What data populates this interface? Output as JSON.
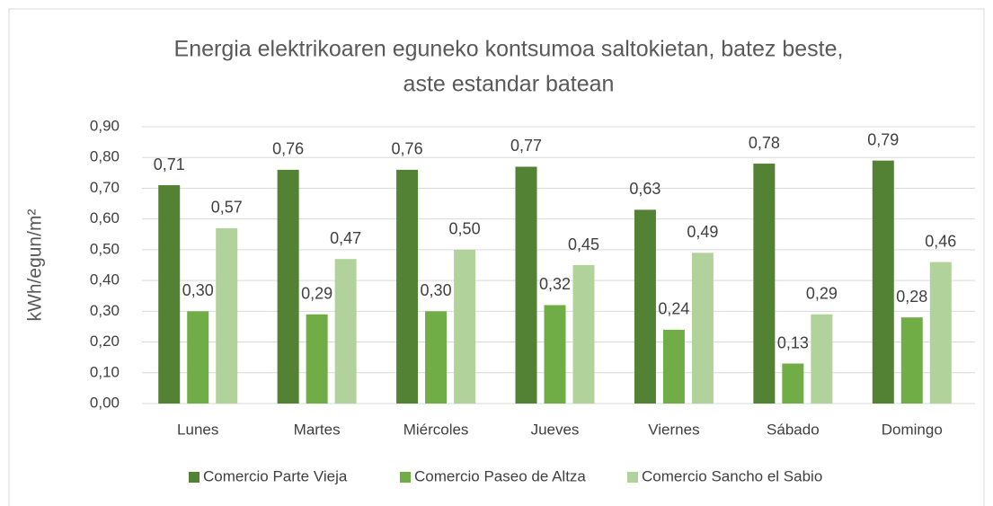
{
  "chart_data": {
    "type": "bar",
    "title": [
      "Energia elektrikoaren eguneko kontsumoa saltokietan, batez beste,",
      "aste estandar batean"
    ],
    "y_label": "kWh/egun/m²",
    "categories": [
      "Lunes",
      "Martes",
      "Miércoles",
      "Jueves",
      "Viernes",
      "Sábado",
      "Domingo"
    ],
    "series": [
      {
        "name": "Comercio Parte Vieja",
        "color": "#548235",
        "values": [
          0.71,
          0.76,
          0.76,
          0.77,
          0.63,
          0.78,
          0.79
        ],
        "value_labels": [
          "0,71",
          "0,76",
          "0,76",
          "0,77",
          "0,63",
          "0,78",
          "0,79"
        ]
      },
      {
        "name": "Comercio Paseo de Altza",
        "color": "#70ad47",
        "values": [
          0.3,
          0.29,
          0.3,
          0.32,
          0.24,
          0.13,
          0.28
        ],
        "value_labels": [
          "0,30",
          "0,29",
          "0,30",
          "0,32",
          "0,24",
          "0,13",
          "0,28"
        ]
      },
      {
        "name": "Comercio Sancho el Sabio",
        "color": "#b1d39b",
        "values": [
          0.57,
          0.47,
          0.5,
          0.45,
          0.49,
          0.29,
          0.46
        ],
        "value_labels": [
          "0,57",
          "0,47",
          "0,50",
          "0,45",
          "0,49",
          "0,29",
          "0,46"
        ]
      }
    ],
    "ylim": [
      0,
      0.9
    ],
    "yticks": [
      {
        "value": 0,
        "label": "0,00"
      },
      {
        "value": 0.1,
        "label": "0,10"
      },
      {
        "value": 0.2,
        "label": "0,20"
      },
      {
        "value": 0.3,
        "label": "0,30"
      },
      {
        "value": 0.4,
        "label": "0,40"
      },
      {
        "value": 0.5,
        "label": "0,50"
      },
      {
        "value": 0.6,
        "label": "0,60"
      },
      {
        "value": 0.7,
        "label": "0,70"
      },
      {
        "value": 0.8,
        "label": "0,80"
      },
      {
        "value": 0.9,
        "label": "0,90"
      }
    ],
    "grid": true,
    "legend": "bottom"
  }
}
